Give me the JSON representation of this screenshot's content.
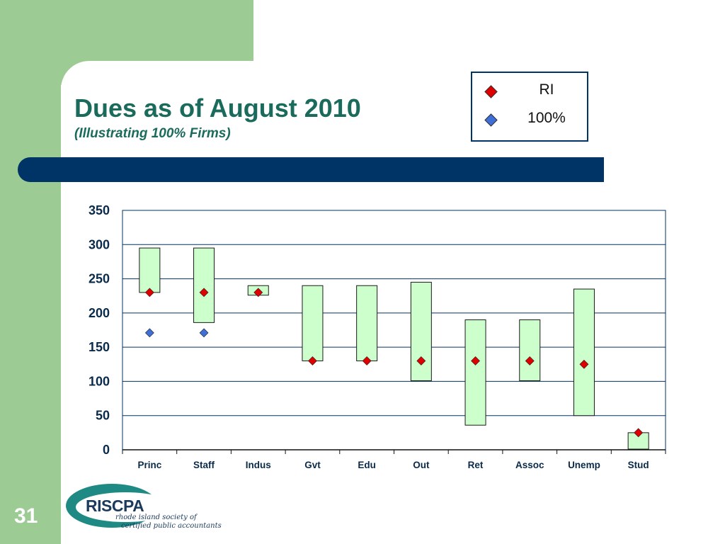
{
  "slide": {
    "title": "Dues as of August 2010",
    "subtitle": "(Illustrating 100% Firms)",
    "number": "31"
  },
  "logo": {
    "name": "RISCPA",
    "tagline_1": "rhode island society of",
    "tagline_2": "certified public accountants"
  },
  "legend": {
    "items": [
      {
        "label": "RI",
        "color": "#e00000"
      },
      {
        "label": "100%",
        "color": "#3d6fd6"
      }
    ]
  },
  "colors": {
    "range_fill": "#ccffcc",
    "frame": "#003366",
    "ri_marker": "#e00000",
    "firm_marker": "#3d6fd6",
    "title": "#1b6b5c",
    "sidebar_green": "#9dcb94"
  },
  "chart_data": {
    "type": "floating-bar",
    "categories": [
      "Princ",
      "Staff",
      "Indus",
      "Gvt",
      "Edu",
      "Out",
      "Ret",
      "Assoc",
      "Unemp",
      "Stud"
    ],
    "ranges": [
      [
        230,
        295
      ],
      [
        186,
        295
      ],
      [
        226,
        240
      ],
      [
        130,
        240
      ],
      [
        130,
        240
      ],
      [
        101,
        245
      ],
      [
        36,
        190
      ],
      [
        101,
        190
      ],
      [
        50,
        235
      ],
      [
        1,
        25
      ]
    ],
    "series": [
      {
        "name": "RI",
        "values": [
          230,
          230,
          230,
          130,
          130,
          130,
          130,
          130,
          125,
          25
        ]
      },
      {
        "name": "100%",
        "values": [
          171,
          171,
          null,
          null,
          null,
          null,
          null,
          null,
          null,
          null
        ]
      }
    ],
    "yticks": [
      0,
      50,
      100,
      150,
      200,
      250,
      300,
      350
    ],
    "ylim": [
      0,
      350
    ],
    "grid": true
  }
}
